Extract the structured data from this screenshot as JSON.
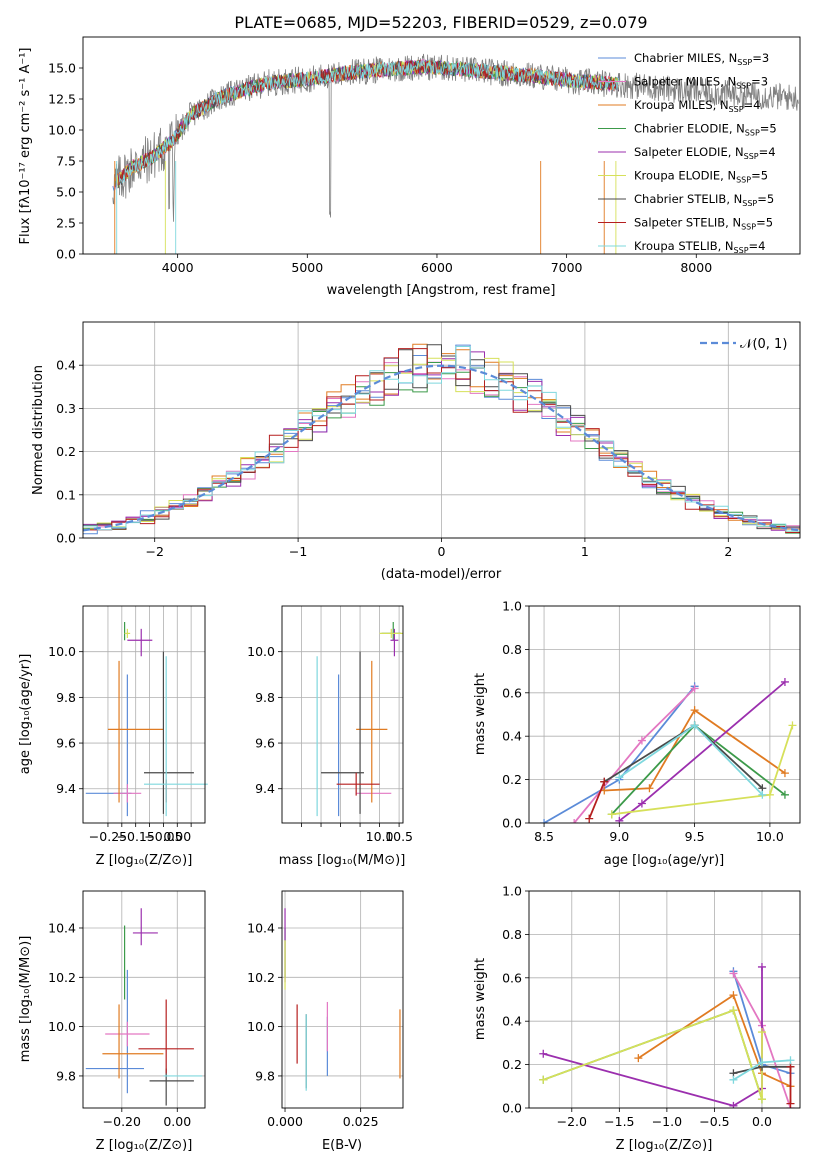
{
  "colors": {
    "Chabrier MILES": "#5b8bd8",
    "Salpeter MILES": "#e377c2",
    "Kroupa MILES": "#e07b22",
    "Chabrier ELODIE": "#3c9a4a",
    "Salpeter ELODIE": "#9b2fae",
    "Kroupa ELODIE": "#d6e05a",
    "Chabrier STELIB": "#4a4a4a",
    "Salpeter STELIB": "#b51f1f",
    "Kroupa STELIB": "#7fd8de",
    "gaussian": "#5b8bd8"
  },
  "chart_data": [
    {
      "type": "line",
      "title": "PLATE=0685, MJD=52203, FIBERID=0529, z=0.079",
      "xlabel": "wavelength [Angstrom, rest frame]",
      "ylabel": "Flux [fλ10⁻¹⁷ erg cm⁻² s⁻¹ A⁻¹]",
      "xlim": [
        3270,
        8800
      ],
      "ylim": [
        0,
        17.5
      ],
      "xticks": [
        "4000",
        "5000",
        "6000",
        "7000",
        "8000"
      ],
      "yticks": [
        "0.0",
        "2.5",
        "5.0",
        "7.5",
        "10.0",
        "12.5",
        "15.0"
      ],
      "legend_position": "right",
      "series_legend": [
        {
          "name": "Chabrier MILES",
          "nssp": "3"
        },
        {
          "name": "Salpeter MILES",
          "nssp": "3"
        },
        {
          "name": "Kroupa MILES",
          "nssp": "4"
        },
        {
          "name": "Chabrier ELODIE",
          "nssp": "5"
        },
        {
          "name": "Salpeter ELODIE",
          "nssp": "4"
        },
        {
          "name": "Kroupa ELODIE",
          "nssp": "5"
        },
        {
          "name": "Chabrier STELIB",
          "nssp": "5"
        },
        {
          "name": "Salpeter STELIB",
          "nssp": "5"
        },
        {
          "name": "Kroupa STELIB",
          "nssp": "4"
        }
      ],
      "continuum": {
        "x": [
          3500,
          3650,
          3800,
          3950,
          4100,
          4300,
          4500,
          4700,
          5000,
          5300,
          5600,
          5900,
          6200,
          6500,
          6800,
          7100,
          7400
        ],
        "y": [
          5.5,
          7.0,
          7.8,
          9.0,
          11.2,
          12.5,
          13.2,
          13.8,
          14.1,
          14.6,
          14.9,
          15.1,
          14.9,
          14.6,
          14.3,
          13.9,
          13.7
        ]
      },
      "observed_continuum": {
        "x": [
          3500,
          3650,
          3800,
          3950,
          4100,
          4300,
          4500,
          4700,
          5000,
          5300,
          5600,
          5900,
          6200,
          6500,
          6800,
          7100,
          7400,
          7700,
          8000,
          8300,
          8600,
          8790
        ],
        "y": [
          5.5,
          7.0,
          7.8,
          9.0,
          11.2,
          12.5,
          13.2,
          13.8,
          14.1,
          14.6,
          14.9,
          15.1,
          14.9,
          14.6,
          14.3,
          13.9,
          13.7,
          13.4,
          13.1,
          12.9,
          12.7,
          12.6
        ]
      }
    },
    {
      "type": "step",
      "xlabel": "(data-model)/error",
      "ylabel": "Normed distribution",
      "xlim": [
        -2.5,
        2.5
      ],
      "ylim": [
        0,
        0.5
      ],
      "xticks": [
        "−2",
        "−1",
        "0",
        "1",
        "2"
      ],
      "yticks": [
        "0.0",
        "0.1",
        "0.2",
        "0.3",
        "0.4"
      ],
      "legend_label": "𝒩(0, 1)",
      "legend_position": "top-right",
      "bin_width": 0.1
    },
    {
      "type": "errorbar",
      "xlabel": "Z [log₁₀(Z/Z⊙)]",
      "ylabel": "age  [log₁₀(age/yr)]",
      "xlim": [
        -0.34,
        0.1
      ],
      "ylim": [
        9.25,
        10.2
      ],
      "xticks": [
        "−0.25",
        "−0.20",
        "−0.15",
        "−0.10",
        "−0.05",
        "0.00",
        "0.05"
      ],
      "xtick_labels": [
        "−0.25",
        "",
        "−0.15",
        "",
        "−0.05",
        "0.00",
        ""
      ],
      "yticks": [
        "9.4",
        "9.6",
        "9.8",
        "10.0"
      ],
      "points": [
        {
          "series": "Chabrier MILES",
          "x": -0.18,
          "xerr": [
            0.15,
            0.015
          ],
          "y": 9.38,
          "yerr": [
            0.1,
            0.52
          ]
        },
        {
          "series": "Salpeter MILES",
          "x": -0.18,
          "xerr": [
            0.05,
            0.05
          ],
          "y": 9.38,
          "yerr": [
            0.04,
            0.04
          ]
        },
        {
          "series": "Kroupa MILES",
          "x": -0.21,
          "xerr": [
            0.04,
            0.16
          ],
          "y": 9.66,
          "yerr": [
            0.32,
            0.3
          ]
        },
        {
          "series": "Chabrier ELODIE",
          "x": -0.19,
          "xerr": [
            0.0,
            0.0
          ],
          "y": 10.08,
          "yerr": [
            0.03,
            0.05
          ]
        },
        {
          "series": "Salpeter ELODIE",
          "x": -0.13,
          "xerr": [
            0.05,
            0.04
          ],
          "y": 10.05,
          "yerr": [
            0.07,
            0.05
          ]
        },
        {
          "series": "Kroupa ELODIE",
          "x": -0.18,
          "xerr": [
            0.01,
            0.01
          ],
          "y": 10.08,
          "yerr": [
            0.02,
            0.02
          ]
        },
        {
          "series": "Chabrier STELIB",
          "x": -0.05,
          "xerr": [
            0.07,
            0.11
          ],
          "y": 9.47,
          "yerr": [
            0.18,
            0.53
          ]
        },
        {
          "series": "Salpeter STELIB",
          "x": -0.04,
          "xerr": [
            0.0,
            0.0
          ],
          "y": 9.39,
          "yerr": [
            0.05,
            0.05
          ]
        },
        {
          "series": "Kroupa STELIB",
          "x": -0.04,
          "xerr": [
            0.08,
            0.15
          ],
          "y": 9.42,
          "yerr": [
            0.14,
            0.56
          ]
        }
      ]
    },
    {
      "type": "errorbar",
      "xlabel": "mass [log₁₀(M/M⊙)]",
      "ylabel": "",
      "xlim": [
        7.5,
        10.6
      ],
      "ylim": [
        9.25,
        10.2
      ],
      "xticks": [
        "8",
        "8.5",
        "9",
        "9.5",
        "10",
        "10.5"
      ],
      "xtick_labels": [
        "",
        "",
        "",
        "",
        "10.0",
        "10.5"
      ],
      "yticks": [
        "9.4",
        "9.6",
        "9.8",
        "10.0"
      ],
      "points": [
        {
          "series": "Chabrier MILES",
          "x": 8.95,
          "y": 9.38,
          "xerr": [
            0.0,
            0.0
          ],
          "yerr": [
            0.1,
            0.52
          ]
        },
        {
          "series": "Salpeter MILES",
          "x": 9.7,
          "y": 9.38,
          "xerr": [
            0.3,
            0.6
          ],
          "yerr": [
            0.0,
            0.0
          ]
        },
        {
          "series": "Kroupa MILES",
          "x": 9.8,
          "y": 9.66,
          "xerr": [
            0.4,
            0.4
          ],
          "yerr": [
            0.32,
            0.3
          ]
        },
        {
          "series": "Chabrier ELODIE",
          "x": 10.35,
          "y": 10.08,
          "xerr": [
            0.3,
            0.2
          ],
          "yerr": [
            0.03,
            0.05
          ]
        },
        {
          "series": "Salpeter ELODIE",
          "x": 10.38,
          "y": 10.05,
          "xerr": [
            0.1,
            0.1
          ],
          "yerr": [
            0.07,
            0.05
          ]
        },
        {
          "series": "Kroupa ELODIE",
          "x": 10.3,
          "y": 10.08,
          "xerr": [
            0.3,
            0.3
          ],
          "yerr": [
            0.02,
            0.02
          ]
        },
        {
          "series": "Chabrier STELIB",
          "x": 9.5,
          "y": 9.47,
          "xerr": [
            1.0,
            0.1
          ],
          "yerr": [
            0.18,
            0.53
          ]
        },
        {
          "series": "Salpeter STELIB",
          "x": 9.4,
          "y": 9.42,
          "xerr": [
            0.5,
            0.6
          ],
          "yerr": [
            0.05,
            0.05
          ]
        },
        {
          "series": "Kroupa STELIB",
          "x": 8.4,
          "y": 9.42,
          "xerr": [
            0.0,
            0.0
          ],
          "yerr": [
            0.14,
            0.56
          ]
        }
      ]
    },
    {
      "type": "line",
      "xlabel": "age  [log₁₀(age/yr)]",
      "ylabel": "mass weight",
      "xlim": [
        8.4,
        10.2
      ],
      "ylim": [
        0,
        1
      ],
      "xticks": [
        "8.5",
        "9.0",
        "9.5",
        "10.0"
      ],
      "yticks": [
        "0.0",
        "0.2",
        "0.4",
        "0.6",
        "0.8",
        "1.0"
      ],
      "series": [
        {
          "series": "Chabrier MILES",
          "x": [
            8.5,
            9.0,
            9.5
          ],
          "y": [
            0.0,
            0.2,
            0.63
          ]
        },
        {
          "series": "Salpeter MILES",
          "x": [
            8.7,
            9.15,
            9.5
          ],
          "y": [
            0.0,
            0.38,
            0.62
          ]
        },
        {
          "series": "Kroupa MILES",
          "x": [
            8.9,
            9.2,
            9.5,
            10.1
          ],
          "y": [
            0.15,
            0.16,
            0.52,
            0.23
          ]
        },
        {
          "series": "Chabrier ELODIE",
          "x": [
            8.95,
            9.5,
            10.1
          ],
          "y": [
            0.04,
            0.45,
            0.13
          ]
        },
        {
          "series": "Salpeter ELODIE",
          "x": [
            9.0,
            9.15,
            10.1
          ],
          "y": [
            0.01,
            0.09,
            0.65
          ]
        },
        {
          "series": "Kroupa ELODIE",
          "x": [
            8.95,
            10.0,
            10.15
          ],
          "y": [
            0.04,
            0.13,
            0.45
          ]
        },
        {
          "series": "Chabrier STELIB",
          "x": [
            8.9,
            9.5,
            9.95
          ],
          "y": [
            0.19,
            0.45,
            0.16
          ]
        },
        {
          "series": "Salpeter STELIB",
          "x": [
            8.8,
            8.9
          ],
          "y": [
            0.02,
            0.19
          ]
        },
        {
          "series": "Kroupa STELIB",
          "x": [
            9.0,
            9.5,
            9.95
          ],
          "y": [
            0.21,
            0.45,
            0.13
          ]
        }
      ]
    },
    {
      "type": "errorbar",
      "xlabel": "Z [log₁₀(Z/Z⊙)]",
      "ylabel": "mass [log₁₀(M/M⊙)]",
      "xlim": [
        -0.34,
        0.1
      ],
      "ylim": [
        9.67,
        10.55
      ],
      "xticks": [
        "−0.20",
        "0.00"
      ],
      "yticks": [
        "9.8",
        "10.0",
        "10.2",
        "10.4"
      ],
      "points": [
        {
          "series": "Chabrier MILES",
          "x": -0.18,
          "y": 9.83,
          "xerr": [
            0.15,
            0.06
          ],
          "yerr": [
            0.1,
            0.4
          ]
        },
        {
          "series": "Salpeter MILES",
          "x": -0.18,
          "y": 9.97,
          "xerr": [
            0.08,
            0.08
          ],
          "yerr": [
            0.05,
            0.05
          ]
        },
        {
          "series": "Kroupa MILES",
          "x": -0.21,
          "y": 9.89,
          "xerr": [
            0.06,
            0.16
          ],
          "yerr": [
            0.1,
            0.2
          ]
        },
        {
          "series": "Chabrier ELODIE",
          "x": -0.19,
          "y": 10.31,
          "xerr": [
            0.0,
            0.0
          ],
          "yerr": [
            0.2,
            0.1
          ]
        },
        {
          "series": "Salpeter ELODIE",
          "x": -0.13,
          "y": 10.38,
          "xerr": [
            0.03,
            0.06
          ],
          "yerr": [
            0.05,
            0.1
          ]
        },
        {
          "series": "Kroupa ELODIE",
          "x": -0.18,
          "y": 10.29,
          "xerr": [
            0.0,
            0.0
          ],
          "yerr": [
            0.0,
            0.0
          ]
        },
        {
          "series": "Chabrier STELIB",
          "x": -0.04,
          "y": 9.78,
          "xerr": [
            0.06,
            0.1
          ],
          "yerr": [
            0.1,
            0.05
          ]
        },
        {
          "series": "Salpeter STELIB",
          "x": -0.04,
          "y": 9.91,
          "xerr": [
            0.1,
            0.1
          ],
          "yerr": [
            0.1,
            0.2
          ]
        },
        {
          "series": "Kroupa STELIB",
          "x": -0.04,
          "y": 9.8,
          "xerr": [
            0.01,
            0.13
          ],
          "yerr": [
            0.0,
            0.0
          ]
        }
      ]
    },
    {
      "type": "errorbar",
      "xlabel": "E(B-V)",
      "ylabel": "",
      "xlim": [
        -0.001,
        0.039
      ],
      "ylim": [
        9.67,
        10.55
      ],
      "xticks": [
        "0.000",
        "0.025"
      ],
      "yticks": [
        "9.8",
        "10.0",
        "10.2",
        "10.4"
      ],
      "points": [
        {
          "series": "Chabrier MILES",
          "x": 0.014,
          "y": 9.92,
          "yerr": [
            0.12,
            0.12
          ]
        },
        {
          "series": "Salpeter MILES",
          "x": 0.014,
          "y": 10.0,
          "yerr": [
            0.1,
            0.1
          ]
        },
        {
          "series": "Kroupa MILES",
          "x": 0.038,
          "y": 9.95,
          "yerr": [
            0.16,
            0.12
          ]
        },
        {
          "series": "Chabrier ELODIE",
          "x": 0.0,
          "y": 10.3,
          "yerr": [
            0.1,
            0.1
          ]
        },
        {
          "series": "Salpeter ELODIE",
          "x": 0.0,
          "y": 10.38,
          "yerr": [
            0.2,
            0.1
          ]
        },
        {
          "series": "Kroupa ELODIE",
          "x": 0.0,
          "y": 10.25,
          "yerr": [
            0.1,
            0.1
          ]
        },
        {
          "series": "Chabrier STELIB",
          "x": 0.007,
          "y": 9.9,
          "yerr": [
            0.15,
            0.15
          ]
        },
        {
          "series": "Salpeter STELIB",
          "x": 0.004,
          "y": 9.99,
          "yerr": [
            0.14,
            0.1
          ]
        },
        {
          "series": "Kroupa STELIB",
          "x": 0.007,
          "y": 9.9,
          "yerr": [
            0.16,
            0.15
          ]
        }
      ]
    },
    {
      "type": "line",
      "xlabel": "Z [log₁₀(Z/Z⊙)]",
      "ylabel": "mass weight",
      "xlim": [
        -2.45,
        0.4
      ],
      "ylim": [
        0,
        1
      ],
      "xticks": [
        "−2.0",
        "−1.5",
        "−1.0",
        "−0.5",
        "0.0"
      ],
      "yticks": [
        "0.0",
        "0.2",
        "0.4",
        "0.6",
        "0.8",
        "1.0"
      ],
      "series": [
        {
          "series": "Chabrier MILES",
          "x": [
            -0.3,
            0.0,
            0.3
          ],
          "y": [
            0.63,
            0.2,
            0.16
          ]
        },
        {
          "series": "Salpeter MILES",
          "x": [
            -0.3,
            0.0,
            0.3
          ],
          "y": [
            0.62,
            0.38,
            0.0
          ]
        },
        {
          "series": "Kroupa MILES",
          "x": [
            -1.3,
            -0.3,
            0.0,
            0.3
          ],
          "y": [
            0.23,
            0.52,
            0.16,
            0.1
          ]
        },
        {
          "series": "Chabrier ELODIE",
          "x": [
            -2.3,
            -0.3,
            0.0
          ],
          "y": [
            0.13,
            0.45,
            0.04
          ]
        },
        {
          "series": "Salpeter ELODIE",
          "x": [
            -2.3,
            -0.3,
            0.0,
            0.0
          ],
          "y": [
            0.25,
            0.01,
            0.09,
            0.65
          ]
        },
        {
          "series": "Kroupa ELODIE",
          "x": [
            -2.3,
            -0.3,
            0.0,
            0.0
          ],
          "y": [
            0.13,
            0.45,
            0.04,
            0.35
          ]
        },
        {
          "series": "Chabrier STELIB",
          "x": [
            -0.3,
            0.0,
            0.3
          ],
          "y": [
            0.16,
            0.19,
            0.19
          ]
        },
        {
          "series": "Salpeter STELIB",
          "x": [
            0.3,
            0.3
          ],
          "y": [
            0.02,
            0.19
          ]
        },
        {
          "series": "Kroupa STELIB",
          "x": [
            -0.3,
            0.0,
            0.3
          ],
          "y": [
            0.13,
            0.21,
            0.22
          ]
        }
      ]
    }
  ]
}
